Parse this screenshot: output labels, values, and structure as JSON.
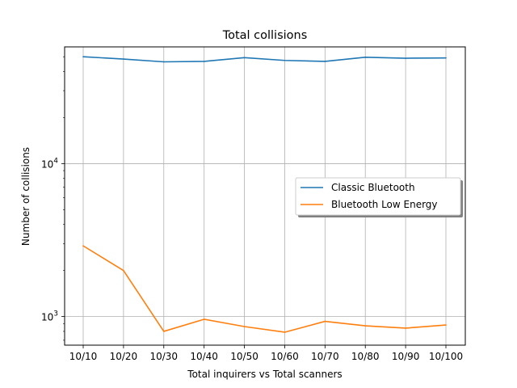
{
  "chart_data": {
    "type": "line",
    "title": "Total collisions",
    "xlabel": "Total inquirers vs Total scanners",
    "ylabel": "Number of collisions",
    "y_scale": "log",
    "ylim": [
      650,
      58000
    ],
    "categories": [
      "10/10",
      "10/20",
      "10/30",
      "10/40",
      "10/50",
      "10/60",
      "10/70",
      "10/80",
      "10/90",
      "10/100"
    ],
    "y_ticks": [
      {
        "value": 1000,
        "base": "10",
        "exp": "3"
      },
      {
        "value": 10000,
        "base": "10",
        "exp": "4"
      }
    ],
    "grid": true,
    "legend_position": "center-right",
    "series": [
      {
        "name": "Classic Bluetooth",
        "color": "#1f77b4",
        "values": [
          50000,
          48300,
          46300,
          46600,
          49300,
          47300,
          46600,
          49600,
          48900,
          49100
        ]
      },
      {
        "name": "Bluetooth Low Energy",
        "color": "#ff7f0e",
        "values": [
          2900,
          2000,
          800,
          960,
          860,
          790,
          930,
          870,
          840,
          880
        ]
      }
    ]
  }
}
